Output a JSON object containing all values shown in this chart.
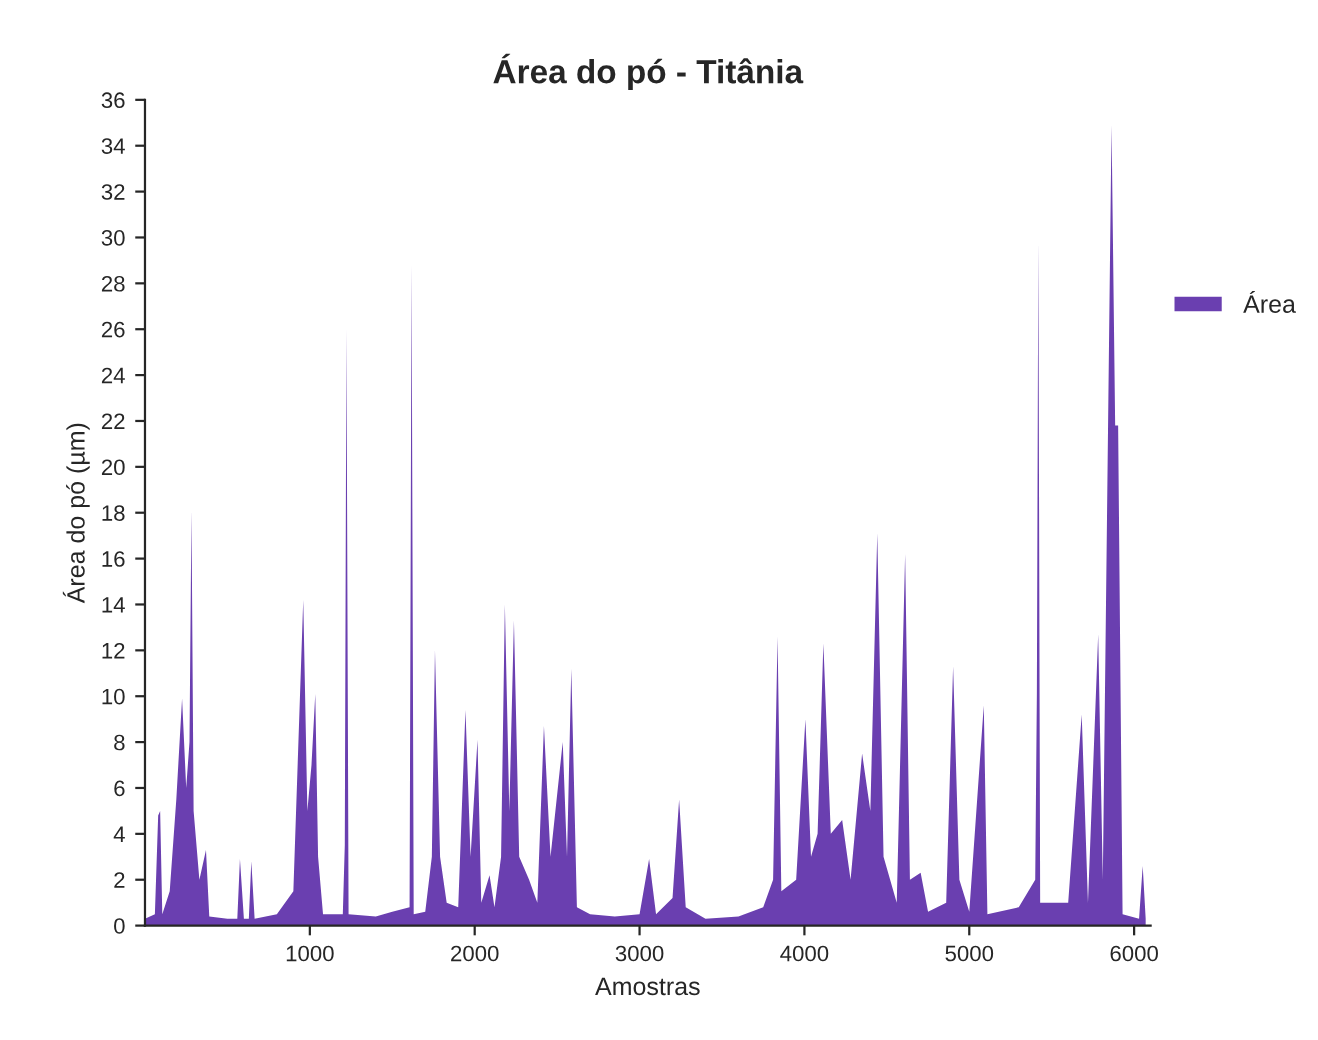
{
  "chart_data": {
    "type": "area",
    "title": "Área do pó - Titânia",
    "xlabel": "Amostras",
    "ylabel": "Área do pó (µm)",
    "x": [
      0,
      60,
      80,
      92,
      105,
      150,
      190,
      225,
      250,
      270,
      282,
      295,
      330,
      370,
      390,
      500,
      560,
      576,
      600,
      630,
      645,
      665,
      800,
      900,
      960,
      985,
      1010,
      1033,
      1050,
      1080,
      1200,
      1212,
      1222,
      1235,
      1400,
      1500,
      1605,
      1617,
      1630,
      1700,
      1740,
      1759,
      1790,
      1830,
      1900,
      1944,
      1975,
      2017,
      2040,
      2090,
      2120,
      2160,
      2183,
      2210,
      2238,
      2270,
      2330,
      2380,
      2420,
      2460,
      2534,
      2560,
      2586,
      2620,
      2700,
      2850,
      3000,
      3058,
      3100,
      3200,
      3240,
      3280,
      3400,
      3600,
      3750,
      3810,
      3837,
      3860,
      3950,
      4006,
      4040,
      4080,
      4115,
      4160,
      4229,
      4280,
      4350,
      4400,
      4442,
      4480,
      4560,
      4611,
      4640,
      4705,
      4750,
      4860,
      4902,
      4940,
      5000,
      5088,
      5110,
      5300,
      5400,
      5410,
      5419,
      5430,
      5600,
      5682,
      5720,
      5782,
      5810,
      5863,
      5885,
      5903,
      5930,
      6030,
      6052,
      6070
    ],
    "series": [
      {
        "name": "Área",
        "color": "#6a3fb0",
        "values": [
          0.3,
          0.5,
          4.8,
          5.0,
          0.5,
          1.5,
          5.5,
          9.9,
          6,
          8,
          18.1,
          5,
          2,
          3.3,
          0.4,
          0.3,
          0.3,
          2.9,
          0.3,
          0.3,
          2.8,
          0.3,
          0.5,
          1.5,
          14.2,
          5,
          7,
          10.1,
          3,
          0.5,
          0.5,
          3.5,
          26.0,
          0.5,
          0.4,
          0.6,
          0.8,
          28.8,
          0.5,
          0.6,
          3,
          12.0,
          3,
          1,
          0.8,
          9.4,
          3,
          8.1,
          1,
          2.2,
          0.8,
          3,
          14.0,
          5,
          13.3,
          3,
          2,
          1,
          8.7,
          3,
          8.0,
          3,
          11.2,
          0.8,
          0.5,
          0.4,
          0.5,
          2.9,
          0.5,
          1.2,
          5.5,
          0.8,
          0.3,
          0.4,
          0.8,
          2,
          12.6,
          1.5,
          2,
          9.0,
          3,
          4,
          12.3,
          4,
          4.6,
          2,
          7.5,
          5,
          17.1,
          3,
          1,
          16.2,
          2,
          2.3,
          0.6,
          1,
          11.3,
          2,
          0.6,
          9.6,
          0.5,
          0.8,
          2,
          10.1,
          29.9,
          1,
          1,
          9.2,
          1,
          12.7,
          2,
          34.9,
          21.8,
          21.8,
          0.5,
          0.3,
          2.6,
          0.3
        ]
      }
    ],
    "xlim": [
      0,
      6100
    ],
    "xticks": [
      1000,
      2000,
      3000,
      4000,
      5000,
      6000
    ],
    "ylim": [
      0,
      36
    ],
    "yticks": [
      0,
      2,
      4,
      6,
      8,
      10,
      12,
      14,
      16,
      18,
      20,
      22,
      24,
      26,
      28,
      30,
      32,
      34,
      36
    ],
    "legend": "right",
    "grid": false
  }
}
